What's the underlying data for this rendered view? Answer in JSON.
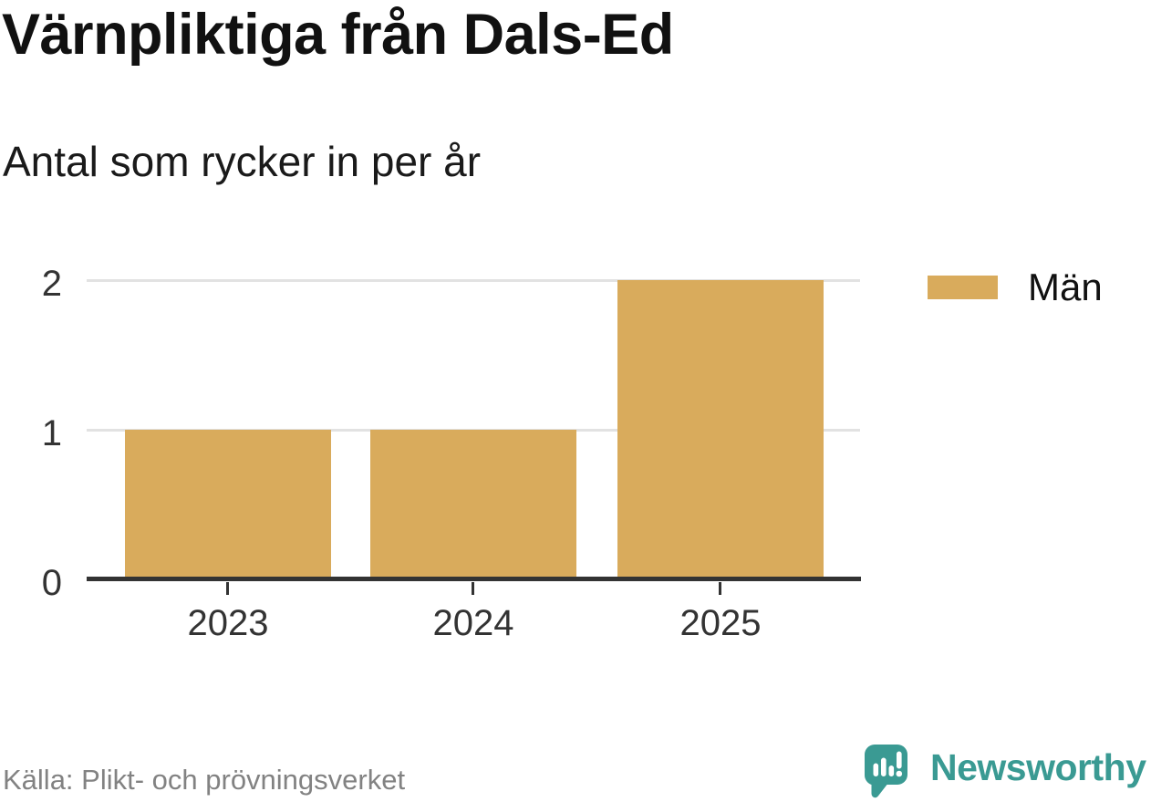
{
  "title": "Värnpliktiga från Dals-Ed",
  "subtitle": "Antal som rycker in per år",
  "source": "Källa: Plikt- och prövningsverket",
  "brand": {
    "name": "Newsworthy",
    "color": "#3a9a93",
    "icon": "newsworthy-speech-bubble-chart-icon"
  },
  "legend": {
    "items": [
      {
        "label": "Män",
        "color": "#d9ab5c"
      }
    ],
    "position": "right"
  },
  "colors": {
    "bar": "#d9ab5c",
    "grid": "#e2e2e2",
    "axis": "#333333",
    "title_text": "#111111",
    "label_text": "#333333",
    "muted_text": "#828282"
  },
  "chart_data": {
    "type": "bar",
    "categories": [
      "2023",
      "2024",
      "2025"
    ],
    "series": [
      {
        "name": "Män",
        "values": [
          1,
          1,
          2
        ],
        "color": "#d9ab5c"
      }
    ],
    "title": "Värnpliktiga från Dals-Ed",
    "subtitle": "Antal som rycker in per år",
    "xlabel": "",
    "ylabel": "",
    "yticks": [
      0,
      1,
      2
    ],
    "ylim": [
      0,
      2
    ],
    "grid": true,
    "legend_position": "right",
    "source": "Källa: Plikt- och prövningsverket"
  }
}
